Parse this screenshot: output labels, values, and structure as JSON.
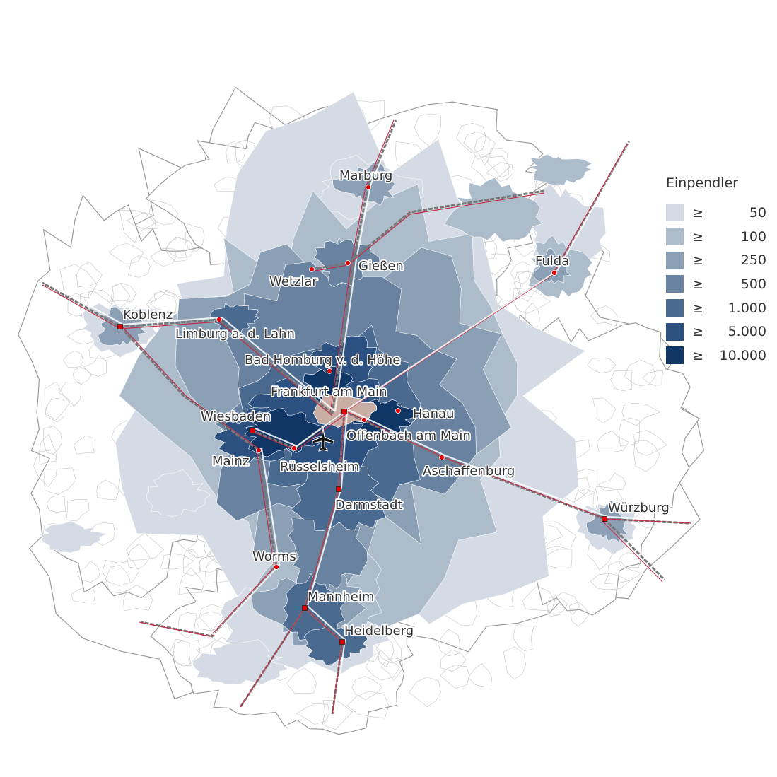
{
  "legend": {
    "title": "Einpendler",
    "symbol": "≥",
    "classes": [
      {
        "label": "50",
        "color": "#d4dbe4"
      },
      {
        "label": "100",
        "color": "#adbccb"
      },
      {
        "label": "250",
        "color": "#8b9fb5"
      },
      {
        "label": "500",
        "color": "#6882a0"
      },
      {
        "label": "1.000",
        "color": "#4b6a90"
      },
      {
        "label": "5.000",
        "color": "#2c5080"
      },
      {
        "label": "10.000",
        "color": "#0f3665"
      }
    ]
  },
  "colors": {
    "destination": "#c9aea5",
    "rail": "#c0304a",
    "motorway": "#ffffff",
    "boundary": "#9a9a9a",
    "city_marker": "#e00000"
  },
  "destination": "Frankfurt am Main",
  "airport_icon": "airplane-icon",
  "cities": [
    {
      "name": "Marburg"
    },
    {
      "name": "Gießen"
    },
    {
      "name": "Wetzlar"
    },
    {
      "name": "Fulda"
    },
    {
      "name": "Koblenz"
    },
    {
      "name": "Limburg a. d. Lahn"
    },
    {
      "name": "Bad Homburg v. d. Höhe"
    },
    {
      "name": "Frankfurt am Main"
    },
    {
      "name": "Hanau"
    },
    {
      "name": "Offenbach am Main"
    },
    {
      "name": "Wiesbaden"
    },
    {
      "name": "Mainz"
    },
    {
      "name": "Rüsselsheim"
    },
    {
      "name": "Aschaffenburg"
    },
    {
      "name": "Darmstadt"
    },
    {
      "name": "Würzburg"
    },
    {
      "name": "Worms"
    },
    {
      "name": "Mannheim"
    },
    {
      "name": "Heidelberg"
    }
  ]
}
